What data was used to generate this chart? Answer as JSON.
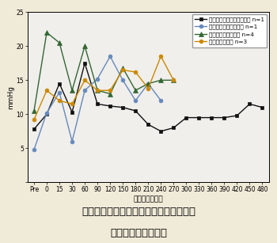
{
  "caption_line1": "図３　全身吸入麻酔下での牛の平均脳圧",
  "caption_line2": "（硬膜外圧）の推移",
  "xlabel": "経過時間（分）",
  "ylabel": "mmHg",
  "ylim": [
    0,
    25
  ],
  "yticks": [
    0,
    5,
    10,
    15,
    20,
    25
  ],
  "x_labels": [
    "Pre",
    "0",
    "15",
    "30",
    "60",
    "90",
    "120",
    "150",
    "180",
    "210",
    "240",
    "270",
    "300",
    "330",
    "360",
    "390",
    "420",
    "450",
    "480"
  ],
  "series": [
    {
      "label": "牛脳手術台：イソフルレン n=1",
      "color": "#111111",
      "marker": "s",
      "markersize": 3.5,
      "linewidth": 1.0,
      "x_indices": [
        0,
        1,
        2,
        3,
        4,
        5,
        6,
        7,
        8,
        9,
        10,
        11,
        12,
        13,
        14,
        15,
        16,
        17,
        18
      ],
      "y": [
        7.8,
        10.0,
        14.5,
        10.3,
        17.5,
        11.5,
        11.2,
        11.0,
        10.5,
        8.5,
        7.5,
        8.0,
        9.5,
        9.5,
        9.5,
        9.5,
        9.8,
        11.5,
        11.0
      ]
    },
    {
      "label": "横臥位：イソフルレン n=1",
      "color": "#6688bb",
      "marker": "o",
      "markersize": 3.5,
      "linewidth": 1.0,
      "x_indices": [
        0,
        1,
        2,
        3,
        4,
        5,
        6,
        7,
        8,
        9,
        10
      ],
      "y": [
        4.8,
        10.2,
        13.2,
        6.0,
        13.5,
        15.2,
        18.5,
        15.0,
        12.0,
        14.5,
        12.0
      ]
    },
    {
      "label": "横臥位：キシラジン n=4",
      "color": "#336633",
      "marker": "^",
      "markersize": 4.5,
      "linewidth": 1.0,
      "x_indices": [
        0,
        1,
        2,
        3,
        4,
        5,
        6,
        7,
        8,
        9,
        10,
        11
      ],
      "y": [
        10.5,
        22.0,
        20.5,
        13.5,
        20.0,
        13.5,
        13.0,
        16.8,
        13.5,
        14.5,
        15.0,
        15.0
      ]
    },
    {
      "label": "横臥位：無麻酔 n=3",
      "color": "#cc8800",
      "marker": "o",
      "markersize": 3.5,
      "linewidth": 1.0,
      "x_indices": [
        0,
        1,
        2,
        3,
        4,
        5,
        6,
        7,
        8,
        9,
        10,
        11
      ],
      "y": [
        9.2,
        13.5,
        12.0,
        11.5,
        15.0,
        13.5,
        13.5,
        16.5,
        16.2,
        13.8,
        18.5,
        15.0
      ]
    }
  ],
  "figure_bg_color": "#f0ead8",
  "plot_bg_color": "#f0efec",
  "legend_fontsize": 5.2,
  "tick_fontsize": 5.5,
  "label_fontsize": 6.5,
  "caption_fontsize": 9.5
}
